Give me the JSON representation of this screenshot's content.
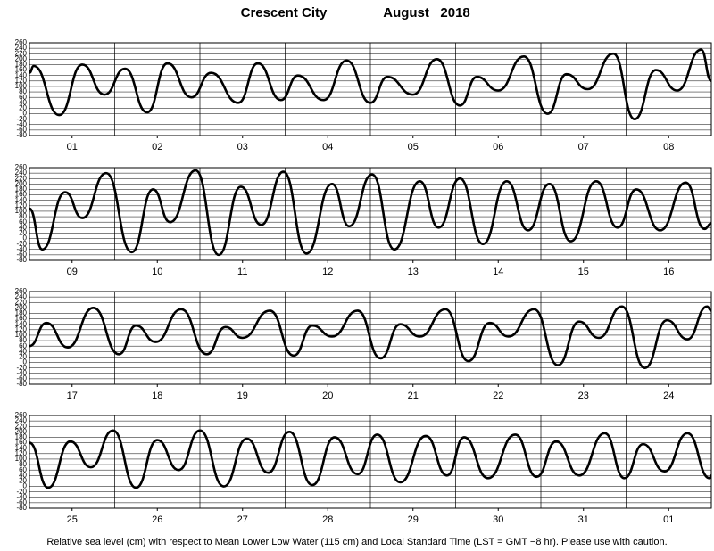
{
  "title": "Crescent City",
  "date": "August   2018",
  "note": "Relative sea level (cm) with respect to Mean Lower Low Water (115 cm) and Local Standard Time (LST = GMT −8 hr). Please use with caution.",
  "chart_data": [
    {
      "type": "line",
      "color": "#000000",
      "xlim": [
        0,
        8
      ],
      "ylim": [
        -80,
        260
      ],
      "yticks": [
        260,
        240,
        220,
        200,
        180,
        160,
        140,
        120,
        100,
        80,
        60,
        40,
        20,
        0,
        -20,
        -40,
        -60,
        -80
      ],
      "grid": true,
      "xticks": [
        {
          "value": 0.5,
          "label": "01"
        },
        {
          "value": 1.5,
          "label": "02"
        },
        {
          "value": 2.5,
          "label": "03"
        },
        {
          "value": 3.5,
          "label": "04"
        },
        {
          "value": 4.5,
          "label": "05"
        },
        {
          "value": 5.5,
          "label": "06"
        },
        {
          "value": 6.5,
          "label": "07"
        },
        {
          "value": 7.5,
          "label": "08"
        }
      ],
      "x": [
        0,
        0.05,
        0.35,
        0.62,
        0.88,
        1.12,
        1.38,
        1.62,
        1.9,
        2.13,
        2.45,
        2.68,
        2.95,
        3.15,
        3.45,
        3.72,
        4.0,
        4.2,
        4.5,
        4.78,
        5.05,
        5.25,
        5.5,
        5.8,
        6.08,
        6.3,
        6.55,
        6.85,
        7.1,
        7.35,
        7.6,
        7.88,
        8.0
      ],
      "values": [
        150,
        175,
        -5,
        180,
        70,
        165,
        5,
        185,
        60,
        150,
        40,
        185,
        50,
        140,
        50,
        195,
        40,
        135,
        70,
        200,
        30,
        135,
        85,
        210,
        0,
        145,
        90,
        220,
        -20,
        160,
        85,
        235,
        120
      ]
    },
    {
      "type": "line",
      "color": "#000000",
      "xlim": [
        0,
        8
      ],
      "ylim": [
        -80,
        260
      ],
      "yticks": [
        260,
        240,
        220,
        200,
        180,
        160,
        140,
        120,
        100,
        80,
        60,
        40,
        20,
        0,
        -20,
        -40,
        -60,
        -80
      ],
      "grid": true,
      "xticks": [
        {
          "value": 0.5,
          "label": "09"
        },
        {
          "value": 1.5,
          "label": "10"
        },
        {
          "value": 2.5,
          "label": "11"
        },
        {
          "value": 3.5,
          "label": "12"
        },
        {
          "value": 4.5,
          "label": "13"
        },
        {
          "value": 5.5,
          "label": "14"
        },
        {
          "value": 6.5,
          "label": "15"
        },
        {
          "value": 7.5,
          "label": "16"
        }
      ],
      "x": [
        0,
        0.15,
        0.42,
        0.62,
        0.9,
        1.2,
        1.45,
        1.65,
        1.95,
        2.22,
        2.48,
        2.72,
        2.98,
        3.25,
        3.55,
        3.75,
        4.02,
        4.28,
        4.58,
        4.8,
        5.05,
        5.32,
        5.6,
        5.85,
        6.1,
        6.35,
        6.65,
        6.9,
        7.12,
        7.4,
        7.7,
        7.92,
        8.0
      ],
      "values": [
        110,
        -40,
        170,
        75,
        240,
        -50,
        180,
        60,
        250,
        -60,
        190,
        50,
        245,
        -55,
        200,
        45,
        235,
        -40,
        210,
        40,
        220,
        -20,
        210,
        30,
        200,
        -10,
        210,
        40,
        180,
        30,
        205,
        35,
        55
      ]
    },
    {
      "type": "line",
      "color": "#000000",
      "xlim": [
        0,
        8
      ],
      "ylim": [
        -80,
        260
      ],
      "yticks": [
        260,
        240,
        220,
        200,
        180,
        160,
        140,
        120,
        100,
        80,
        60,
        40,
        20,
        0,
        -20,
        -40,
        -60,
        -80
      ],
      "grid": true,
      "xticks": [
        {
          "value": 0.5,
          "label": "17"
        },
        {
          "value": 1.5,
          "label": "18"
        },
        {
          "value": 2.5,
          "label": "19"
        },
        {
          "value": 3.5,
          "label": "20"
        },
        {
          "value": 4.5,
          "label": "21"
        },
        {
          "value": 5.5,
          "label": "22"
        },
        {
          "value": 6.5,
          "label": "23"
        },
        {
          "value": 7.5,
          "label": "24"
        }
      ],
      "x": [
        0,
        0.2,
        0.45,
        0.75,
        1.05,
        1.25,
        1.48,
        1.78,
        2.08,
        2.3,
        2.5,
        2.82,
        3.1,
        3.32,
        3.55,
        3.85,
        4.12,
        4.35,
        4.58,
        4.88,
        5.15,
        5.4,
        5.62,
        5.92,
        6.2,
        6.45,
        6.68,
        6.95,
        7.22,
        7.48,
        7.72,
        7.95,
        8.0
      ],
      "values": [
        60,
        145,
        55,
        200,
        30,
        135,
        75,
        195,
        30,
        130,
        90,
        190,
        25,
        135,
        95,
        190,
        15,
        140,
        95,
        195,
        5,
        145,
        95,
        195,
        -10,
        150,
        90,
        205,
        -20,
        155,
        85,
        205,
        190
      ]
    },
    {
      "type": "line",
      "color": "#000000",
      "xlim": [
        0,
        8
      ],
      "ylim": [
        -80,
        260
      ],
      "yticks": [
        260,
        240,
        220,
        200,
        180,
        160,
        140,
        120,
        100,
        80,
        60,
        40,
        20,
        0,
        -20,
        -40,
        -60,
        -80
      ],
      "grid": true,
      "xticks": [
        {
          "value": 0.5,
          "label": "25"
        },
        {
          "value": 1.5,
          "label": "26"
        },
        {
          "value": 2.5,
          "label": "27"
        },
        {
          "value": 3.5,
          "label": "28"
        },
        {
          "value": 4.5,
          "label": "29"
        },
        {
          "value": 5.5,
          "label": "30"
        },
        {
          "value": 6.5,
          "label": "31"
        },
        {
          "value": 7.5,
          "label": "01"
        }
      ],
      "x": [
        0,
        0.22,
        0.48,
        0.72,
        0.98,
        1.25,
        1.5,
        1.75,
        2.0,
        2.28,
        2.55,
        2.8,
        3.05,
        3.32,
        3.58,
        3.85,
        4.08,
        4.35,
        4.65,
        4.9,
        5.1,
        5.38,
        5.7,
        5.95,
        6.18,
        6.45,
        6.75,
        6.98,
        7.2,
        7.45,
        7.72,
        7.98,
        8.0
      ],
      "values": [
        160,
        -5,
        165,
        70,
        205,
        -5,
        170,
        60,
        205,
        0,
        175,
        50,
        200,
        5,
        180,
        45,
        190,
        15,
        185,
        40,
        180,
        30,
        190,
        35,
        165,
        40,
        195,
        30,
        155,
        55,
        195,
        30,
        40
      ]
    }
  ]
}
